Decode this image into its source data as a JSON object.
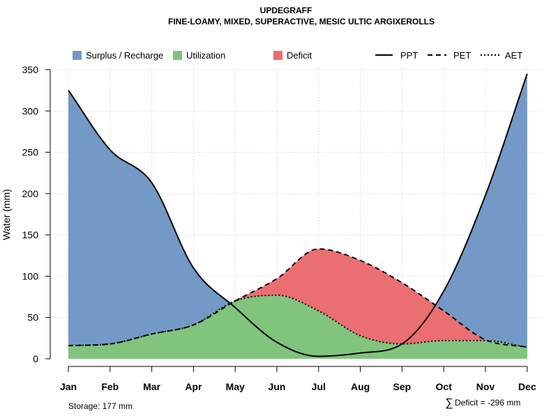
{
  "chart_data": {
    "type": "area",
    "title_line1": "UPDEGRAFF",
    "title_line2": "FINE-LOAMY, MIXED, SUPERACTIVE, MESIC ULTIC ARGIXEROLLS",
    "ylabel": "Water (mm)",
    "xlabel": "",
    "ylim": [
      0,
      350
    ],
    "yticks": [
      "0",
      "50",
      "100",
      "150",
      "200",
      "250",
      "300",
      "350"
    ],
    "ytick_values": [
      0,
      50,
      100,
      150,
      200,
      250,
      300,
      350
    ],
    "categories": [
      "Jan",
      "Feb",
      "Mar",
      "Apr",
      "May",
      "Jun",
      "Jul",
      "Aug",
      "Sep",
      "Oct",
      "Nov",
      "Dec"
    ],
    "grid": true,
    "series": [
      {
        "name": "PPT",
        "style": "solid",
        "values": [
          325,
          253,
          213,
          110,
          62,
          20,
          3,
          7,
          18,
          82,
          198,
          345
        ]
      },
      {
        "name": "PET",
        "style": "dashed",
        "values": [
          16,
          18,
          30,
          41,
          70,
          97,
          133,
          119,
          92,
          58,
          23,
          14
        ]
      },
      {
        "name": "AET",
        "style": "dotted",
        "values": [
          16,
          18,
          30,
          41,
          70,
          77,
          58,
          28,
          18,
          22,
          22,
          14
        ]
      }
    ],
    "fills": [
      {
        "name": "Surplus / Recharge",
        "color": "#7399C6"
      },
      {
        "name": "Utilization",
        "color": "#80C47D"
      },
      {
        "name": "Deficit",
        "color": "#EB6E70"
      }
    ],
    "legend_position": "top",
    "footer_left": "Storage: 177 mm",
    "footer_right_symbol": "∑",
    "footer_right": "Deficit = -296 mm"
  }
}
